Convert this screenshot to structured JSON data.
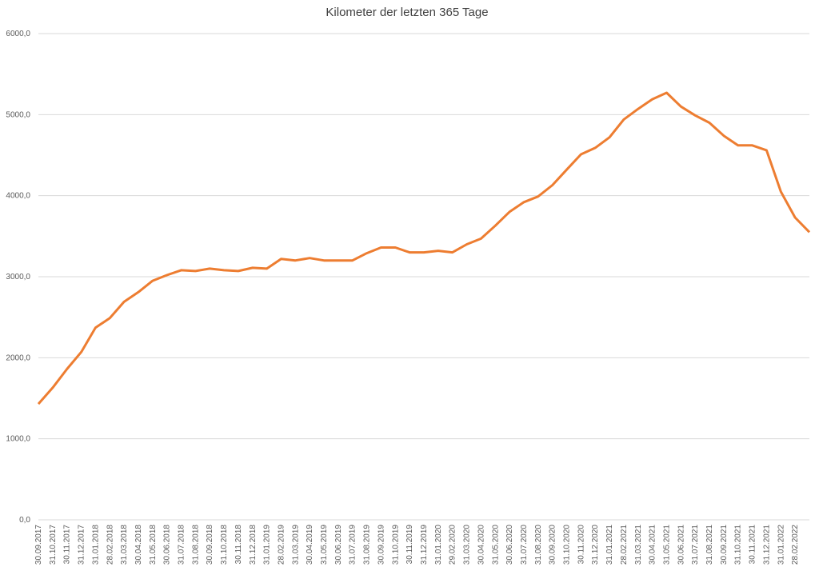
{
  "chart_data": {
    "type": "line",
    "title": "Kilometer der letzten 365 Tage",
    "categories": [
      "30.09.2017",
      "31.10.2017",
      "30.11.2017",
      "31.12.2017",
      "31.01.2018",
      "28.02.2018",
      "31.03.2018",
      "30.04.2018",
      "31.05.2018",
      "30.06.2018",
      "31.07.2018",
      "31.08.2018",
      "30.09.2018",
      "31.10.2018",
      "30.11.2018",
      "31.12.2018",
      "31.01.2019",
      "28.02.2019",
      "31.03.2019",
      "30.04.2019",
      "31.05.2019",
      "30.06.2019",
      "31.07.2019",
      "31.08.2019",
      "30.09.2019",
      "31.10.2019",
      "30.11.2019",
      "31.12.2019",
      "31.01.2020",
      "29.02.2020",
      "31.03.2020",
      "30.04.2020",
      "31.05.2020",
      "30.06.2020",
      "31.07.2020",
      "31.08.2020",
      "30.09.2020",
      "31.10.2020",
      "30.11.2020",
      "31.12.2020",
      "31.01.2021",
      "28.02.2021",
      "31.03.2021",
      "30.04.2021",
      "31.05.2021",
      "30.06.2021",
      "31.07.2021",
      "31.08.2021",
      "30.09.2021",
      "31.10.2021",
      "30.11.2021",
      "31.12.2021",
      "31.01.2022",
      "28.02.2022",
      null
    ],
    "series": [
      {
        "name": "Kilometer",
        "color": "#ed7d31",
        "values": [
          1430,
          1630,
          1860,
          2070,
          2370,
          2490,
          2690,
          2810,
          2950,
          3020,
          3080,
          3070,
          3100,
          3080,
          3070,
          3110,
          3100,
          3220,
          3200,
          3230,
          3200,
          3200,
          3200,
          3290,
          3360,
          3360,
          3300,
          3300,
          3320,
          3300,
          3400,
          3470,
          3630,
          3800,
          3920,
          3990,
          4130,
          4320,
          4510,
          4590,
          4720,
          4940,
          5070,
          5190,
          5270,
          5100,
          4990,
          4900,
          4740,
          4620,
          4620,
          4560,
          4050,
          3730,
          3550
        ]
      }
    ],
    "ylim": [
      0,
      6000
    ],
    "yticks": [
      {
        "value": 0,
        "label": "0,0"
      },
      {
        "value": 1000,
        "label": "1000,0"
      },
      {
        "value": 2000,
        "label": "2000,0"
      },
      {
        "value": 3000,
        "label": "3000,0"
      },
      {
        "value": 4000,
        "label": "4000,0"
      },
      {
        "value": 5000,
        "label": "5000,0"
      },
      {
        "value": 6000,
        "label": "6000,0"
      }
    ],
    "grid": true
  }
}
